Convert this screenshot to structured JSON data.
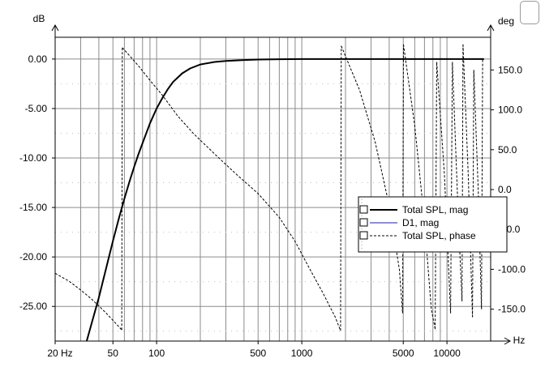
{
  "chart_data": {
    "type": "line",
    "xscale": "log",
    "xlim": [
      20,
      20000
    ],
    "ylim_left": [
      -28.5,
      2.2
    ],
    "ylim_right": [
      -190,
      191
    ],
    "xlabel_unit": "Hz",
    "ylabel_left": "dB",
    "ylabel_right": "deg",
    "grid": true,
    "x_tick_labels": [
      {
        "v": 20,
        "label": "20 Hz"
      },
      {
        "v": 50,
        "label": "50"
      },
      {
        "v": 100,
        "label": "100"
      },
      {
        "v": 500,
        "label": "500"
      },
      {
        "v": 1000,
        "label": "1000"
      },
      {
        "v": 5000,
        "label": "5000"
      },
      {
        "v": 10000,
        "label": "10000"
      }
    ],
    "x_unit_label": "Hz",
    "y_left_ticks": [
      {
        "v": 0,
        "label": "0.00"
      },
      {
        "v": -5,
        "label": "-5.00"
      },
      {
        "v": -10,
        "label": "-10.00"
      },
      {
        "v": -15,
        "label": "-15.00"
      },
      {
        "v": -20,
        "label": "-20.00"
      },
      {
        "v": -25,
        "label": "-25.00"
      }
    ],
    "y_right_ticks": [
      {
        "v": 150,
        "label": "150.0"
      },
      {
        "v": 100,
        "label": "100.0"
      },
      {
        "v": 50,
        "label": "50.0"
      },
      {
        "v": 0,
        "label": "0.0"
      },
      {
        "v": -50,
        "label": "-50.0"
      },
      {
        "v": -100,
        "label": "-100.0"
      },
      {
        "v": -150,
        "label": "-150.0"
      }
    ],
    "legend_position": "right",
    "series": [
      {
        "name": "Total SPL, mag",
        "axis": "left",
        "color": "#000000",
        "style": "solid-thick",
        "x": [
          33,
          36,
          40,
          45,
          50,
          55,
          60,
          65,
          70,
          75,
          80,
          90,
          100,
          110,
          120,
          130,
          150,
          170,
          200,
          250,
          300,
          400,
          500,
          700,
          1000,
          2000,
          5000,
          10000,
          18000
        ],
        "y": [
          -28.5,
          -26.5,
          -24.1,
          -21.1,
          -18.4,
          -16.1,
          -14.1,
          -12.4,
          -10.9,
          -9.6,
          -8.5,
          -6.5,
          -5.0,
          -3.9,
          -3.0,
          -2.3,
          -1.45,
          -0.95,
          -0.55,
          -0.3,
          -0.2,
          -0.1,
          -0.05,
          -0.02,
          0.0,
          0.0,
          0.0,
          0.0,
          0.0
        ]
      },
      {
        "name": "D1, mag",
        "axis": "left",
        "color": "#1a1acc",
        "style": "solid",
        "x": [],
        "y": []
      },
      {
        "name": "Total SPL, phase",
        "axis": "right",
        "color": "#000000",
        "style": "dashed",
        "segments": [
          {
            "x": [
              20,
              25,
              30,
              35,
              40,
              45,
              50,
              55,
              57.5
            ],
            "y": [
              -105,
              -115,
              -126,
              -136,
              -146,
              -155,
              -164,
              -172,
              -176
            ]
          },
          {
            "x": [
              57.5,
              58
            ],
            "y": [
              -176,
              178
            ]
          },
          {
            "x": [
              58,
              65,
              75,
              90,
              110,
              140,
              180,
              250,
              350,
              500,
              700,
              900,
              1100,
              1400,
              1700,
              1850
            ],
            "y": [
              178,
              168,
              155,
              137,
              118,
              92,
              70,
              45,
              20,
              -5,
              -35,
              -65,
              -95,
              -130,
              -160,
              -177
            ]
          },
          {
            "x": [
              1850,
              1870
            ],
            "y": [
              -177,
              180
            ]
          },
          {
            "x": [
              1870,
              2500,
              3200,
              4000,
              4700,
              4950
            ],
            "y": [
              180,
              125,
              60,
              -20,
              -100,
              -155
            ]
          },
          {
            "x": [
              4950,
              5020
            ],
            "y": [
              -155,
              182
            ]
          },
          {
            "x": [
              5020,
              6000,
              7000,
              7800,
              8300
            ],
            "y": [
              182,
              80,
              -40,
              -150,
              -175
            ]
          },
          {
            "x": [
              8300,
              8500
            ],
            "y": [
              -175,
              160
            ]
          },
          {
            "x": [
              8500,
              9600,
              10600
            ],
            "y": [
              160,
              20,
              -155
            ]
          },
          {
            "x": [
              10600,
              10900
            ],
            "y": [
              -155,
              160
            ]
          },
          {
            "x": [
              10900,
              12000,
              12700
            ],
            "y": [
              160,
              -40,
              -140
            ]
          },
          {
            "x": [
              12700,
              12900
            ],
            "y": [
              -140,
              182
            ]
          },
          {
            "x": [
              12900,
              14000,
              15000
            ],
            "y": [
              182,
              20,
              -160
            ]
          },
          {
            "x": [
              15000,
              15300
            ],
            "y": [
              -160,
              150
            ]
          },
          {
            "x": [
              15300,
              16500,
              17300
            ],
            "y": [
              150,
              -10,
              -150
            ]
          },
          {
            "x": [
              17300,
              17600
            ],
            "y": [
              -150,
              165
            ]
          }
        ]
      }
    ]
  }
}
